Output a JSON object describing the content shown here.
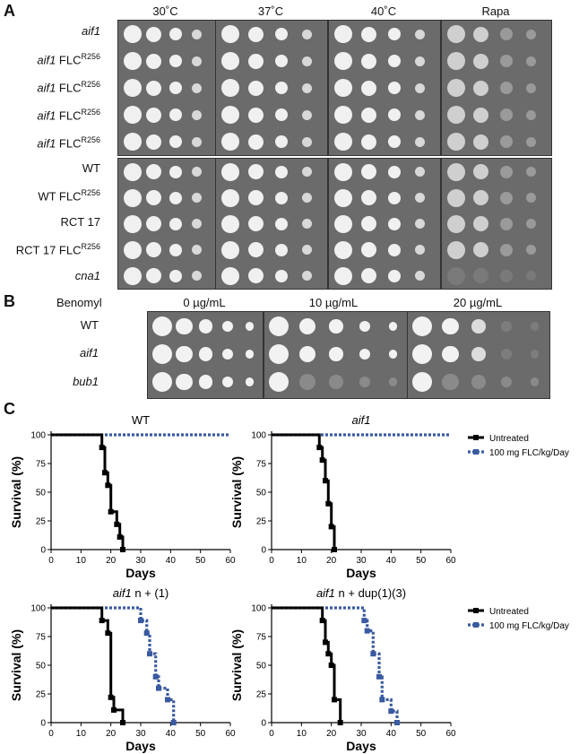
{
  "panelA": {
    "letter": "A",
    "conditions": [
      "30˚C",
      "37˚C",
      "40˚C",
      "Rapa"
    ],
    "strains_top": [
      {
        "name": "aif1",
        "sup": ""
      },
      {
        "name": "aif1 FLC",
        "sup": "R256"
      },
      {
        "name": "aif1 FLC",
        "sup": "R256"
      },
      {
        "name": "aif1 FLC",
        "sup": "R256"
      },
      {
        "name": "aif1 FLC",
        "sup": "R256"
      }
    ],
    "strains_bottom": [
      {
        "name": "WT",
        "sup": ""
      },
      {
        "name": "WT FLC",
        "sup": "R256"
      },
      {
        "name": "RCT 17",
        "sup": ""
      },
      {
        "name": "RCT 17 FLC",
        "sup": "R256"
      },
      {
        "name": "cna1",
        "sup": ""
      }
    ]
  },
  "panelB": {
    "letter": "B",
    "drug": "Benomyl",
    "conditions": [
      "0 µg/mL",
      "10 µg/mL",
      "20 µg/mL"
    ],
    "strains": [
      "WT",
      "aif1",
      "bub1"
    ]
  },
  "panelC": {
    "letter": "C",
    "legend": [
      "Untreated",
      "100 mg FLC/kg/Day"
    ]
  },
  "chart_data": [
    {
      "type": "line",
      "title": "WT",
      "xlabel": "Days",
      "ylabel": "Survival (%)",
      "xlim": [
        0,
        60
      ],
      "ylim": [
        0,
        100
      ],
      "xticks": [
        "0",
        "10",
        "20",
        "30",
        "40",
        "50",
        "60"
      ],
      "yticks": [
        "0",
        "25",
        "50",
        "75",
        "100"
      ],
      "series": [
        {
          "name": "Untreated",
          "style": "solid",
          "color": "#000000",
          "points": [
            [
              0,
              100
            ],
            [
              17,
              100
            ],
            [
              17,
              89
            ],
            [
              18,
              89
            ],
            [
              18,
              67
            ],
            [
              19,
              67
            ],
            [
              19,
              56
            ],
            [
              20,
              56
            ],
            [
              20,
              33
            ],
            [
              22,
              33
            ],
            [
              22,
              22
            ],
            [
              23,
              22
            ],
            [
              23,
              11
            ],
            [
              24,
              11
            ],
            [
              24,
              0
            ]
          ]
        },
        {
          "name": "100 mg FLC/kg/Day",
          "style": "dotted",
          "color": "#3a5aa0",
          "points": [
            [
              0,
              100
            ],
            [
              60,
              100
            ]
          ]
        }
      ]
    },
    {
      "type": "line",
      "title": "aif1",
      "xlabel": "Days",
      "ylabel": "Survival (%)",
      "xlim": [
        0,
        60
      ],
      "ylim": [
        0,
        100
      ],
      "xticks": [
        "0",
        "10",
        "20",
        "30",
        "40",
        "50",
        "60"
      ],
      "yticks": [
        "0",
        "25",
        "50",
        "75",
        "100"
      ],
      "series": [
        {
          "name": "Untreated",
          "style": "solid",
          "color": "#000000",
          "points": [
            [
              0,
              100
            ],
            [
              16,
              100
            ],
            [
              16,
              89
            ],
            [
              17,
              89
            ],
            [
              17,
              78
            ],
            [
              18,
              78
            ],
            [
              18,
              60
            ],
            [
              19,
              60
            ],
            [
              19,
              40
            ],
            [
              20,
              40
            ],
            [
              20,
              20
            ],
            [
              21,
              20
            ],
            [
              21,
              0
            ]
          ]
        },
        {
          "name": "100 mg FLC/kg/Day",
          "style": "dotted",
          "color": "#3a5aa0",
          "points": [
            [
              0,
              100
            ],
            [
              60,
              100
            ]
          ]
        }
      ]
    },
    {
      "type": "line",
      "title": "aif1 n + (1)",
      "xlabel": "Days",
      "ylabel": "Survival (%)",
      "xlim": [
        0,
        60
      ],
      "ylim": [
        0,
        100
      ],
      "xticks": [
        "0",
        "10",
        "20",
        "30",
        "40",
        "50",
        "60"
      ],
      "yticks": [
        "0",
        "25",
        "50",
        "75",
        "100"
      ],
      "series": [
        {
          "name": "Untreated",
          "style": "solid",
          "color": "#000000",
          "points": [
            [
              0,
              100
            ],
            [
              17,
              100
            ],
            [
              17,
              89
            ],
            [
              19,
              89
            ],
            [
              19,
              78
            ],
            [
              20,
              78
            ],
            [
              20,
              22
            ],
            [
              21,
              22
            ],
            [
              21,
              11
            ],
            [
              24,
              11
            ],
            [
              24,
              0
            ]
          ]
        },
        {
          "name": "100 mg FLC/kg/Day",
          "style": "dotted",
          "color": "#3a5aa0",
          "points": [
            [
              0,
              100
            ],
            [
              30,
              100
            ],
            [
              30,
              89
            ],
            [
              32,
              89
            ],
            [
              32,
              78
            ],
            [
              33,
              78
            ],
            [
              33,
              60
            ],
            [
              35,
              60
            ],
            [
              35,
              40
            ],
            [
              36,
              40
            ],
            [
              36,
              30
            ],
            [
              39,
              30
            ],
            [
              39,
              20
            ],
            [
              41,
              20
            ],
            [
              41,
              0
            ]
          ]
        }
      ]
    },
    {
      "type": "line",
      "title": "aif1 n + dup(1)(3)",
      "xlabel": "Days",
      "ylabel": "Survival (%)",
      "xlim": [
        0,
        60
      ],
      "ylim": [
        0,
        100
      ],
      "xticks": [
        "0",
        "10",
        "20",
        "30",
        "40",
        "50",
        "60"
      ],
      "yticks": [
        "0",
        "25",
        "50",
        "75",
        "100"
      ],
      "series": [
        {
          "name": "Untreated",
          "style": "solid",
          "color": "#000000",
          "points": [
            [
              0,
              100
            ],
            [
              17,
              100
            ],
            [
              17,
              89
            ],
            [
              18,
              89
            ],
            [
              18,
              70
            ],
            [
              19,
              70
            ],
            [
              19,
              60
            ],
            [
              20,
              60
            ],
            [
              20,
              50
            ],
            [
              21,
              50
            ],
            [
              21,
              20
            ],
            [
              23,
              20
            ],
            [
              23,
              0
            ]
          ]
        },
        {
          "name": "100 mg FLC/kg/Day",
          "style": "dotted",
          "color": "#3a5aa0",
          "points": [
            [
              0,
              100
            ],
            [
              31,
              100
            ],
            [
              31,
              89
            ],
            [
              32,
              89
            ],
            [
              32,
              80
            ],
            [
              34,
              80
            ],
            [
              34,
              60
            ],
            [
              36,
              60
            ],
            [
              36,
              40
            ],
            [
              37,
              40
            ],
            [
              37,
              20
            ],
            [
              40,
              20
            ],
            [
              40,
              10
            ],
            [
              42,
              10
            ],
            [
              42,
              0
            ]
          ]
        }
      ]
    }
  ]
}
